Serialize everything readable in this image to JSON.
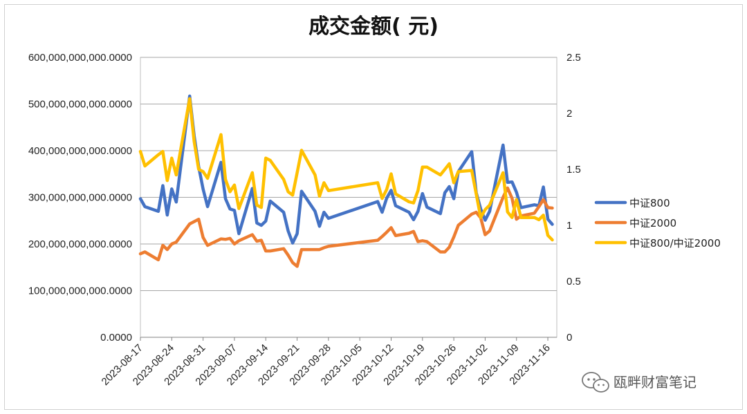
{
  "chart_data": {
    "type": "line",
    "title": "成交金额( 元)",
    "xlabel": "",
    "ylabel": "",
    "y_ticks": [
      "0.0000",
      "100,000,000,000.0000",
      "200,000,000,000.0000",
      "300,000,000,000.0000",
      "400,000,000,000.0000",
      "500,000,000,000.0000",
      "600,000,000,000.0000"
    ],
    "y2_ticks": [
      "0",
      "0.5",
      "1",
      "1.5",
      "2",
      "2.5"
    ],
    "ylim": [
      0,
      600000000000
    ],
    "y2lim": [
      0,
      2.5
    ],
    "grid": true,
    "legend_position": "right",
    "x_tick_labels": [
      "2023-08-17",
      "2023-08-24",
      "2023-08-31",
      "2023-09-07",
      "2023-09-14",
      "2023-09-21",
      "2023-09-28",
      "2023-10-05",
      "2023-10-12",
      "2023-10-19",
      "2023-10-26",
      "2023-11-02",
      "2023-11-09",
      "2023-11-16"
    ],
    "x": [
      "2023-08-17",
      "2023-08-18",
      "2023-08-21",
      "2023-08-22",
      "2023-08-23",
      "2023-08-24",
      "2023-08-25",
      "2023-08-28",
      "2023-08-29",
      "2023-08-30",
      "2023-08-31",
      "2023-09-01",
      "2023-09-04",
      "2023-09-05",
      "2023-09-06",
      "2023-09-07",
      "2023-09-08",
      "2023-09-11",
      "2023-09-12",
      "2023-09-13",
      "2023-09-14",
      "2023-09-15",
      "2023-09-18",
      "2023-09-19",
      "2023-09-20",
      "2023-09-21",
      "2023-09-22",
      "2023-09-25",
      "2023-09-26",
      "2023-09-27",
      "2023-09-28",
      "2023-10-09",
      "2023-10-10",
      "2023-10-11",
      "2023-10-12",
      "2023-10-13",
      "2023-10-16",
      "2023-10-17",
      "2023-10-18",
      "2023-10-19",
      "2023-10-20",
      "2023-10-23",
      "2023-10-24",
      "2023-10-25",
      "2023-10-26",
      "2023-10-27",
      "2023-10-30",
      "2023-10-31",
      "2023-11-01",
      "2023-11-02",
      "2023-11-03",
      "2023-11-06",
      "2023-11-07",
      "2023-11-08",
      "2023-11-09",
      "2023-11-10",
      "2023-11-13",
      "2023-11-14",
      "2023-11-15",
      "2023-11-16",
      "2023-11-17"
    ],
    "series": [
      {
        "name": "中证800",
        "axis": "left",
        "color": "#4472C4",
        "values": [
          297000000000,
          280000000000,
          270000000000,
          325000000000,
          262000000000,
          318000000000,
          290000000000,
          517000000000,
          432000000000,
          366000000000,
          318000000000,
          280000000000,
          375000000000,
          297000000000,
          275000000000,
          272000000000,
          222000000000,
          319000000000,
          245000000000,
          240000000000,
          249000000000,
          292000000000,
          268000000000,
          228000000000,
          202000000000,
          222000000000,
          313000000000,
          270000000000,
          238000000000,
          268000000000,
          255000000000,
          291000000000,
          268000000000,
          298000000000,
          315000000000,
          282000000000,
          268000000000,
          252000000000,
          270000000000,
          308000000000,
          279000000000,
          265000000000,
          310000000000,
          323000000000,
          297000000000,
          355000000000,
          398000000000,
          310000000000,
          275000000000,
          251000000000,
          270000000000,
          412000000000,
          332000000000,
          333000000000,
          311000000000,
          278000000000,
          284000000000,
          282000000000,
          322000000000,
          253000000000,
          242000000000
        ]
      },
      {
        "name": "中证2000",
        "axis": "left",
        "color": "#ED7D31",
        "values": [
          179000000000,
          183000000000,
          166000000000,
          197000000000,
          188000000000,
          200000000000,
          204000000000,
          243000000000,
          248000000000,
          253000000000,
          214000000000,
          197000000000,
          211000000000,
          210000000000,
          212000000000,
          200000000000,
          207000000000,
          220000000000,
          206000000000,
          208000000000,
          185000000000,
          185000000000,
          190000000000,
          176000000000,
          160000000000,
          152000000000,
          188000000000,
          188000000000,
          188000000000,
          192000000000,
          195000000000,
          208000000000,
          216000000000,
          225000000000,
          235000000000,
          218000000000,
          223000000000,
          227000000000,
          205000000000,
          207000000000,
          205000000000,
          183000000000,
          183000000000,
          193000000000,
          215000000000,
          240000000000,
          264000000000,
          268000000000,
          256000000000,
          220000000000,
          228000000000,
          300000000000,
          320000000000,
          298000000000,
          253000000000,
          260000000000,
          266000000000,
          280000000000,
          295000000000,
          278000000000,
          277000000000
        ]
      },
      {
        "name": "中证800/中证2000",
        "axis": "right",
        "color": "#FFC000",
        "values": [
          1.66,
          1.53,
          1.63,
          1.66,
          1.4,
          1.6,
          1.45,
          2.13,
          1.75,
          1.5,
          1.48,
          1.42,
          1.81,
          1.41,
          1.3,
          1.36,
          1.15,
          1.47,
          1.18,
          1.16,
          1.6,
          1.58,
          1.41,
          1.3,
          1.27,
          1.47,
          1.67,
          1.45,
          1.26,
          1.38,
          1.31,
          1.38,
          1.24,
          1.32,
          1.46,
          1.28,
          1.21,
          1.2,
          1.31,
          1.52,
          1.52,
          1.45,
          1.5,
          1.55,
          1.38,
          1.48,
          1.49,
          1.28,
          1.07,
          1.14,
          1.18,
          1.47,
          1.12,
          1.07,
          1.23,
          1.07,
          1.07,
          1.05,
          1.09,
          0.91,
          0.87
        ]
      }
    ]
  },
  "watermark": {
    "text": "瓯畔财富笔记",
    "icon": "wechat-icon"
  }
}
